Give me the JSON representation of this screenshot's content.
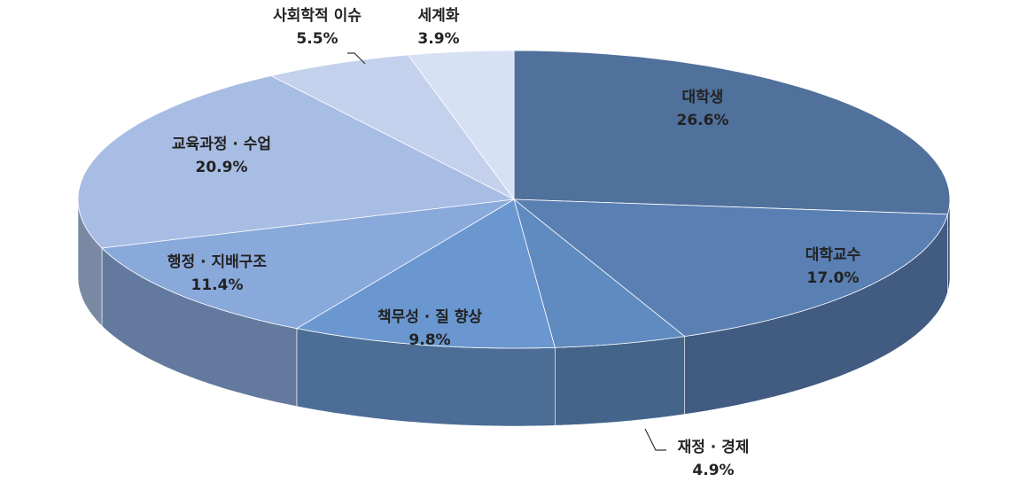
{
  "chart_data": {
    "type": "pie",
    "categories": [
      "대학생",
      "대학교수",
      "재정 · 경제",
      "책무성 · 질 향상",
      "행정 · 지배구조",
      "교육과정 · 수업",
      "사회학적 이슈",
      "세계화"
    ],
    "values": [
      26.6,
      17.0,
      4.9,
      9.8,
      11.4,
      20.9,
      5.5,
      3.9
    ],
    "value_labels": [
      "26.6%",
      "17.0%",
      "4.9%",
      "9.8%",
      "11.4%",
      "20.9%",
      "5.5%",
      "3.9%"
    ],
    "colors": [
      "#50719c",
      "#5a7fb3",
      "#5f8bc0",
      "#6a97d0",
      "#8aa9db",
      "#a8bde3",
      "#c3d1ec",
      "#d7e1f4"
    ]
  }
}
